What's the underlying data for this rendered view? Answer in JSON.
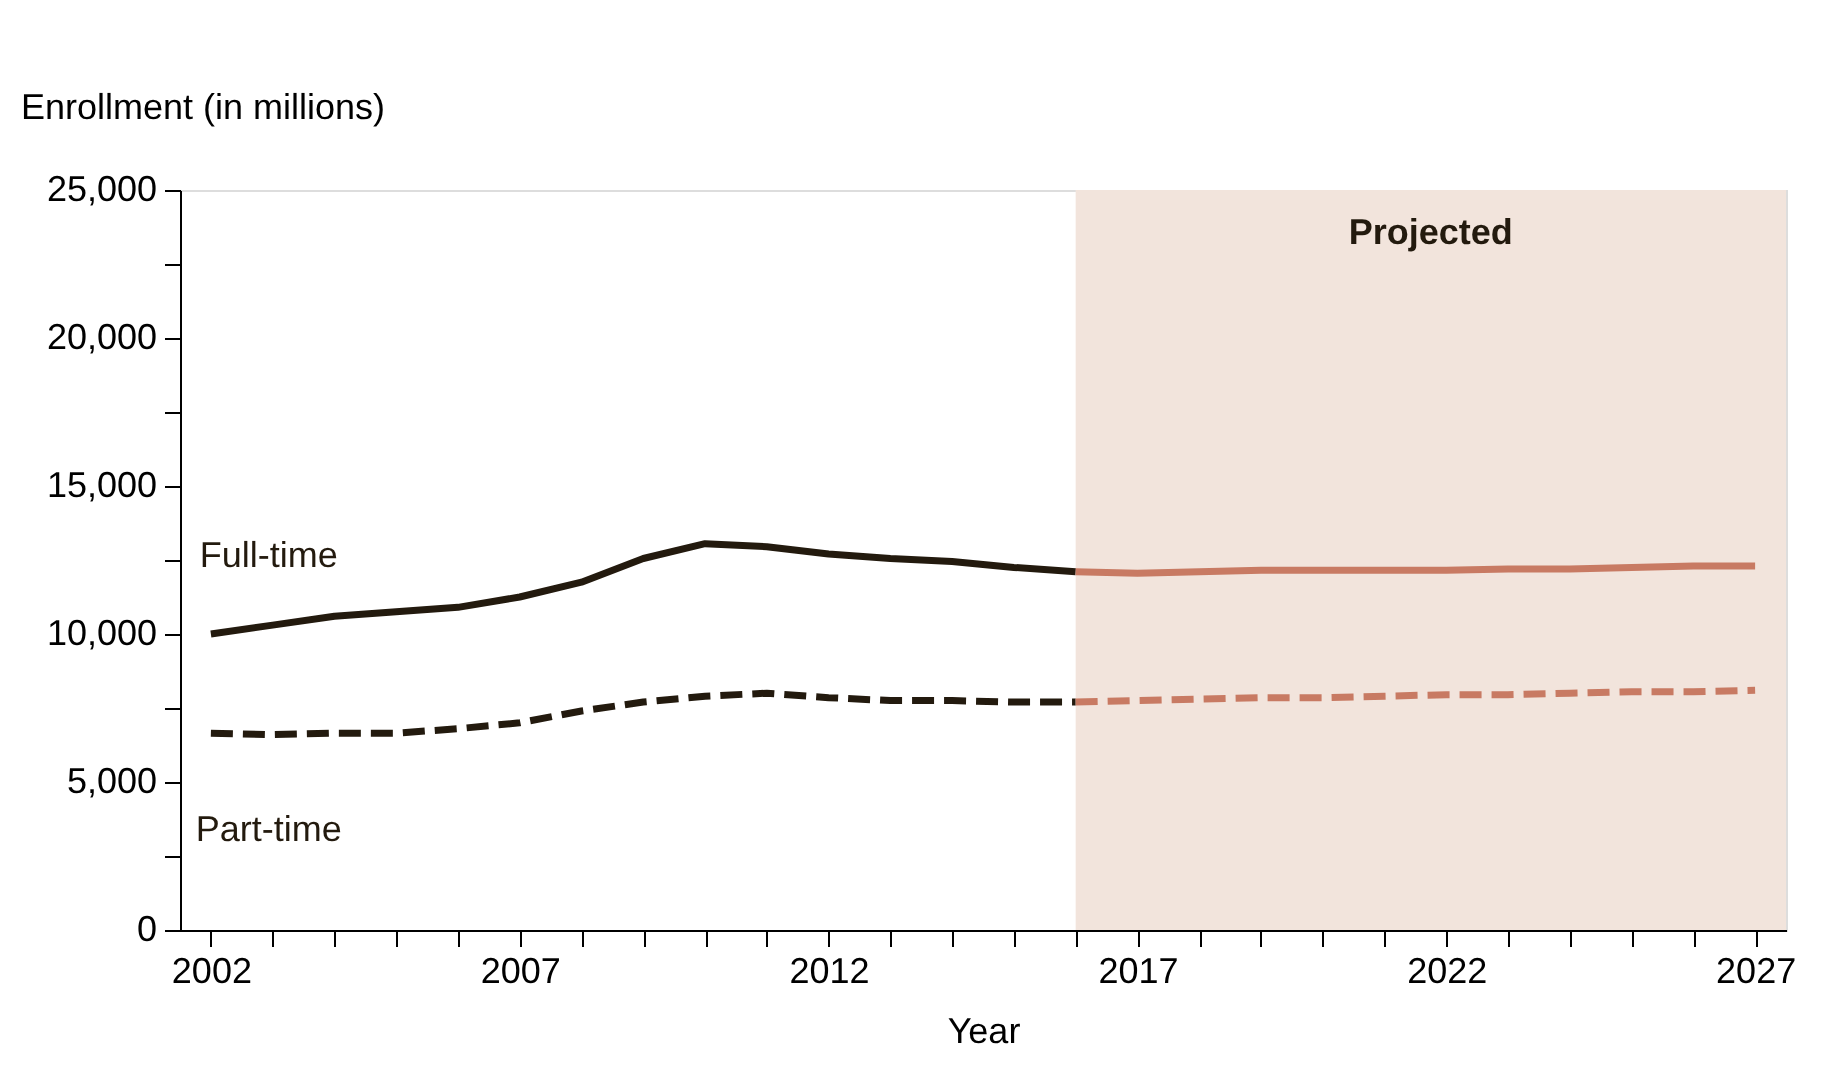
{
  "chart_data": {
    "type": "line",
    "xlabel": "Year",
    "ylabel": "Enrollment (in millions)",
    "series": [
      {
        "name": "Full-time",
        "color": "#231a0e",
        "line_style": "solid",
        "x": [
          2002,
          2003,
          2004,
          2005,
          2006,
          2007,
          2008,
          2009,
          2010,
          2011,
          2012,
          2013,
          2014,
          2015,
          2016
        ],
        "values": [
          10000,
          10300,
          10600,
          10750,
          10900,
          11250,
          11750,
          12550,
          13050,
          12950,
          12700,
          12550,
          12450,
          12250,
          12100
        ]
      },
      {
        "name": "Part-time",
        "color": "#231a0e",
        "line_style": "dashed",
        "x": [
          2002,
          2003,
          2004,
          2005,
          2006,
          2007,
          2008,
          2009,
          2010,
          2011,
          2012,
          2013,
          2014,
          2015,
          2016
        ],
        "values": [
          6650,
          6600,
          6650,
          6650,
          6800,
          7000,
          7400,
          7700,
          7900,
          8000,
          7850,
          7750,
          7750,
          7700,
          7700
        ]
      },
      {
        "color": "#c87a63",
        "line_style": "solid",
        "x": [
          2016,
          2017,
          2018,
          2019,
          2020,
          2021,
          2022,
          2023,
          2024,
          2025,
          2026,
          2027
        ],
        "values": [
          12100,
          12050,
          12100,
          12150,
          12150,
          12150,
          12150,
          12200,
          12200,
          12250,
          12300,
          12300
        ]
      },
      {
        "color": "#c87a63",
        "line_style": "dashed",
        "x": [
          2016,
          2017,
          2018,
          2019,
          2020,
          2021,
          2022,
          2023,
          2024,
          2025,
          2026,
          2027
        ],
        "values": [
          7700,
          7750,
          7800,
          7850,
          7850,
          7900,
          7950,
          7950,
          8000,
          8050,
          8050,
          8100
        ]
      }
    ],
    "bands": [
      {
        "axis": "x",
        "from": 2016,
        "to": 2027.5,
        "label": "Projected",
        "color": "#f2e4dc"
      }
    ],
    "xlim": [
      2001.5,
      2027.5
    ],
    "xticks": [
      2002,
      {
        "value": 2003,
        "label": null
      },
      {
        "value": 2004,
        "label": null
      },
      {
        "value": 2005,
        "label": null
      },
      {
        "value": 2006,
        "label": null
      },
      2007,
      {
        "value": 2008,
        "label": null
      },
      {
        "value": 2009,
        "label": null
      },
      {
        "value": 2010,
        "label": null
      },
      {
        "value": 2011,
        "label": null
      },
      2012,
      {
        "value": 2013,
        "label": null
      },
      {
        "value": 2014,
        "label": null
      },
      {
        "value": 2015,
        "label": null
      },
      {
        "value": 2016,
        "label": null
      },
      2017,
      {
        "value": 2018,
        "label": null
      },
      {
        "value": 2019,
        "label": null
      },
      {
        "value": 2020,
        "label": null
      },
      {
        "value": 2021,
        "label": null
      },
      2022,
      {
        "value": 2023,
        "label": null
      },
      {
        "value": 2024,
        "label": null
      },
      {
        "value": 2025,
        "label": null
      },
      {
        "value": 2026,
        "label": null
      },
      2027
    ],
    "ylim": [
      0,
      25000
    ],
    "yticks": [
      {
        "value": 0,
        "label": "0"
      },
      {
        "value": 2500,
        "label": null
      },
      {
        "value": 5000,
        "label": "5,000"
      },
      {
        "value": 7500,
        "label": null
      },
      {
        "value": 10000,
        "label": "10,000"
      },
      {
        "value": 12500,
        "label": null
      },
      {
        "value": 15000,
        "label": "15,000"
      },
      {
        "value": 17500,
        "label": null
      },
      {
        "value": 20000,
        "label": "20,000"
      },
      {
        "value": 22500,
        "label": null
      },
      {
        "value": 25000,
        "label": "25,000"
      }
    ],
    "grid": false,
    "legend": false,
    "marker": "none"
  }
}
